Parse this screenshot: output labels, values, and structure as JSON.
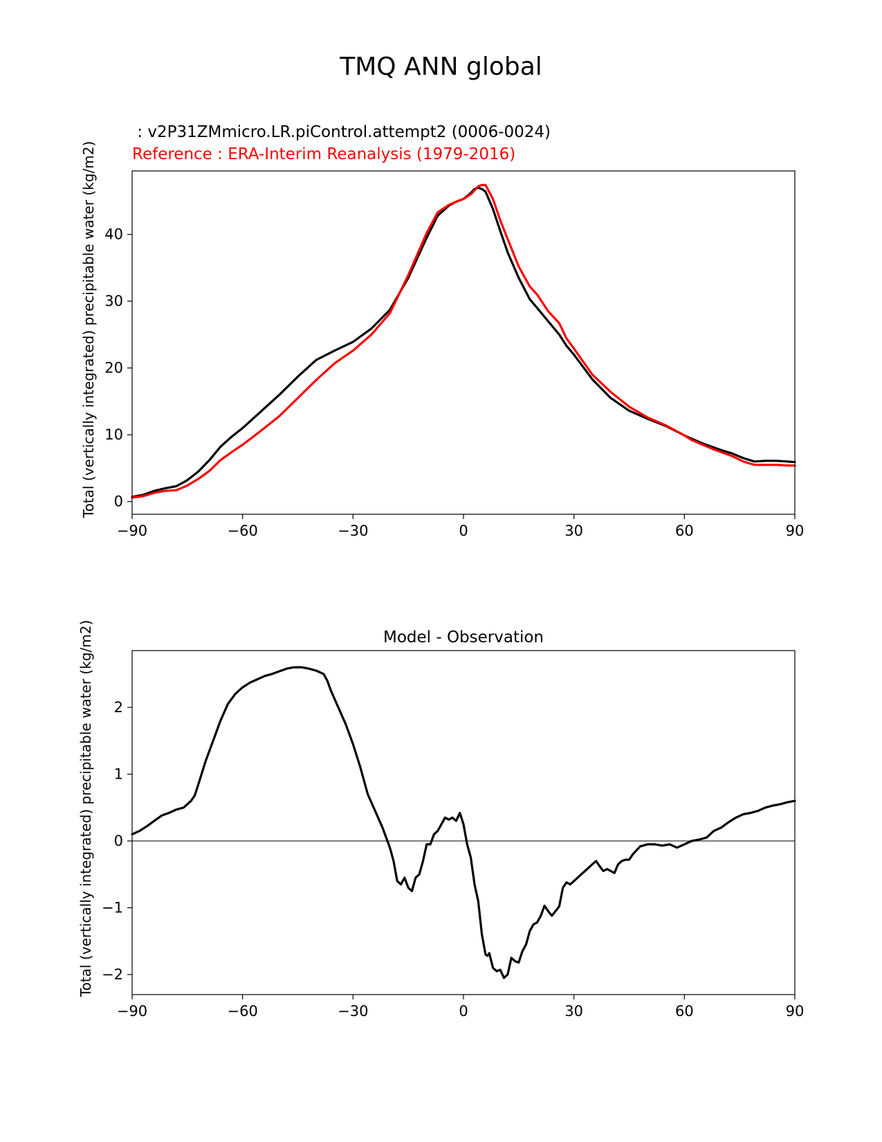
{
  "figure": {
    "title": "TMQ ANN global",
    "test_label": " : v2P31ZMmicro.LR.piControl.attempt2 (0006-0024)",
    "ref_label": "Reference : ERA-Interim Reanalysis (1979-2016)",
    "colors": {
      "test": "#000000",
      "reference": "#ff0000",
      "zero_line": "#808080"
    }
  },
  "chart_data": [
    {
      "type": "line",
      "title": "",
      "xlabel": "",
      "ylabel": "Total (vertically integrated) precipitable water (kg/m2)",
      "xlim": [
        -90,
        90
      ],
      "ylim": [
        -1.9,
        49.5
      ],
      "xticks": [
        -90,
        -60,
        -30,
        0,
        30,
        60,
        90
      ],
      "xtick_labels": [
        "−90",
        "−60",
        "−30",
        "0",
        "30",
        "60",
        "90"
      ],
      "yticks": [
        0,
        10,
        20,
        30,
        40
      ],
      "ytick_labels": [
        "0",
        "10",
        "20",
        "30",
        "40"
      ],
      "series": [
        {
          "name": "test",
          "color": "#000000",
          "x": [
            -90,
            -87,
            -84,
            -81,
            -78,
            -75,
            -72,
            -69,
            -66,
            -63,
            -60,
            -55,
            -50,
            -45,
            -40,
            -35,
            -30,
            -25,
            -20,
            -15,
            -10,
            -7,
            -4,
            -2,
            0,
            2,
            3,
            4,
            5,
            6,
            8,
            10,
            12,
            15,
            18,
            20,
            23,
            26,
            28,
            30,
            35,
            40,
            45,
            50,
            55,
            60,
            62,
            65,
            68,
            70,
            73,
            76,
            79,
            82,
            85,
            88,
            90
          ],
          "y": [
            0.7,
            1.0,
            1.6,
            2.0,
            2.3,
            3.2,
            4.5,
            6.2,
            8.2,
            9.7,
            11.0,
            13.5,
            16.0,
            18.7,
            21.2,
            22.6,
            23.9,
            25.9,
            28.7,
            33.5,
            39.5,
            42.8,
            44.3,
            44.9,
            45.3,
            46.2,
            46.8,
            47.0,
            46.8,
            46.4,
            43.8,
            40.5,
            37.3,
            33.5,
            30.3,
            29.0,
            27.0,
            25.0,
            23.3,
            22.0,
            18.3,
            15.5,
            13.6,
            12.4,
            11.3,
            9.9,
            9.4,
            8.7,
            8.1,
            7.7,
            7.2,
            6.5,
            6.0,
            6.1,
            6.1,
            6.0,
            5.9
          ]
        },
        {
          "name": "reference",
          "color": "#ff0000",
          "x": [
            -90,
            -87,
            -84,
            -81,
            -78,
            -75,
            -72,
            -69,
            -66,
            -63,
            -60,
            -55,
            -50,
            -45,
            -40,
            -35,
            -30,
            -25,
            -20,
            -15,
            -10,
            -7,
            -4,
            -2,
            0,
            2,
            3,
            4,
            5,
            6,
            8,
            10,
            12,
            15,
            18,
            20,
            23,
            26,
            28,
            30,
            35,
            40,
            45,
            50,
            55,
            60,
            62,
            65,
            68,
            70,
            73,
            76,
            79,
            82,
            85,
            88,
            90
          ],
          "y": [
            0.6,
            0.8,
            1.3,
            1.6,
            1.7,
            2.4,
            3.4,
            4.6,
            6.2,
            7.4,
            8.5,
            10.6,
            12.8,
            15.5,
            18.2,
            20.7,
            22.6,
            25.0,
            28.2,
            33.9,
            40.2,
            43.3,
            44.4,
            44.9,
            45.3,
            46.0,
            46.6,
            47.2,
            47.4,
            47.4,
            45.3,
            42.1,
            39.3,
            35.2,
            32.2,
            31.0,
            28.5,
            26.7,
            24.4,
            22.9,
            19.0,
            16.4,
            14.2,
            12.6,
            11.4,
            9.9,
            9.2,
            8.5,
            7.8,
            7.4,
            6.8,
            6.0,
            5.5,
            5.5,
            5.5,
            5.4,
            5.4
          ]
        }
      ]
    },
    {
      "type": "line",
      "title": "Model - Observation",
      "xlabel": "",
      "ylabel": "Total (vertically integrated) precipitable water (kg/m2)",
      "xlim": [
        -90,
        90
      ],
      "ylim": [
        -2.3,
        2.85
      ],
      "xticks": [
        -90,
        -60,
        -30,
        0,
        30,
        60,
        90
      ],
      "xtick_labels": [
        "−90",
        "−60",
        "−30",
        "0",
        "30",
        "60",
        "90"
      ],
      "yticks": [
        -2,
        -1,
        0,
        1,
        2
      ],
      "ytick_labels": [
        "−2",
        "−1",
        "0",
        "1",
        "2"
      ],
      "hline": 0,
      "series": [
        {
          "name": "difference",
          "color": "#000000",
          "x": [
            -90,
            -88,
            -86,
            -84,
            -82,
            -80,
            -78,
            -76,
            -74,
            -73,
            -72,
            -70,
            -68,
            -66,
            -64,
            -62,
            -60,
            -58,
            -56,
            -54,
            -52,
            -50,
            -48,
            -46,
            -44,
            -42,
            -40,
            -38,
            -37,
            -36,
            -34,
            -32,
            -30,
            -28,
            -26,
            -24,
            -22,
            -20,
            -19,
            -18,
            -17,
            -16,
            -15,
            -14,
            -13,
            -12,
            -11,
            -10,
            -9,
            -8,
            -7,
            -6,
            -5,
            -4,
            -3,
            -2,
            -1,
            0,
            1,
            2,
            3,
            4,
            5,
            6,
            6.5,
            7,
            8,
            9,
            10,
            11,
            12,
            13,
            14,
            15,
            16,
            17,
            18,
            19,
            20,
            21,
            22,
            23,
            24,
            25,
            26,
            27,
            28,
            29,
            30,
            31,
            32,
            34,
            36,
            37,
            38,
            39,
            40,
            41,
            42,
            43,
            44,
            45,
            46,
            48,
            50,
            52,
            54,
            56,
            58,
            60,
            62,
            64,
            66,
            68,
            70,
            72,
            74,
            76,
            78,
            80,
            82,
            84,
            86,
            88,
            90
          ],
          "y": [
            0.1,
            0.15,
            0.22,
            0.3,
            0.38,
            0.42,
            0.47,
            0.5,
            0.6,
            0.68,
            0.85,
            1.2,
            1.5,
            1.8,
            2.05,
            2.2,
            2.3,
            2.37,
            2.42,
            2.47,
            2.5,
            2.54,
            2.58,
            2.6,
            2.6,
            2.58,
            2.55,
            2.5,
            2.4,
            2.25,
            2.0,
            1.75,
            1.45,
            1.1,
            0.7,
            0.45,
            0.2,
            -0.1,
            -0.3,
            -0.6,
            -0.65,
            -0.55,
            -0.7,
            -0.75,
            -0.55,
            -0.5,
            -0.3,
            -0.05,
            -0.05,
            0.1,
            0.15,
            0.25,
            0.35,
            0.32,
            0.35,
            0.3,
            0.42,
            0.25,
            -0.05,
            -0.25,
            -0.65,
            -0.9,
            -1.4,
            -1.7,
            -1.72,
            -1.68,
            -1.9,
            -1.95,
            -1.93,
            -2.05,
            -2.0,
            -1.75,
            -1.8,
            -1.82,
            -1.65,
            -1.55,
            -1.35,
            -1.25,
            -1.22,
            -1.12,
            -0.97,
            -1.05,
            -1.12,
            -1.05,
            -0.98,
            -0.7,
            -0.62,
            -0.65,
            -0.6,
            -0.55,
            -0.5,
            -0.4,
            -0.3,
            -0.38,
            -0.45,
            -0.42,
            -0.45,
            -0.48,
            -0.35,
            -0.3,
            -0.28,
            -0.28,
            -0.2,
            -0.08,
            -0.05,
            -0.05,
            -0.07,
            -0.05,
            -0.1,
            -0.05,
            0.0,
            0.02,
            0.05,
            0.15,
            0.2,
            0.28,
            0.35,
            0.4,
            0.42,
            0.45,
            0.5,
            0.53,
            0.55,
            0.58,
            0.6
          ]
        }
      ]
    }
  ]
}
